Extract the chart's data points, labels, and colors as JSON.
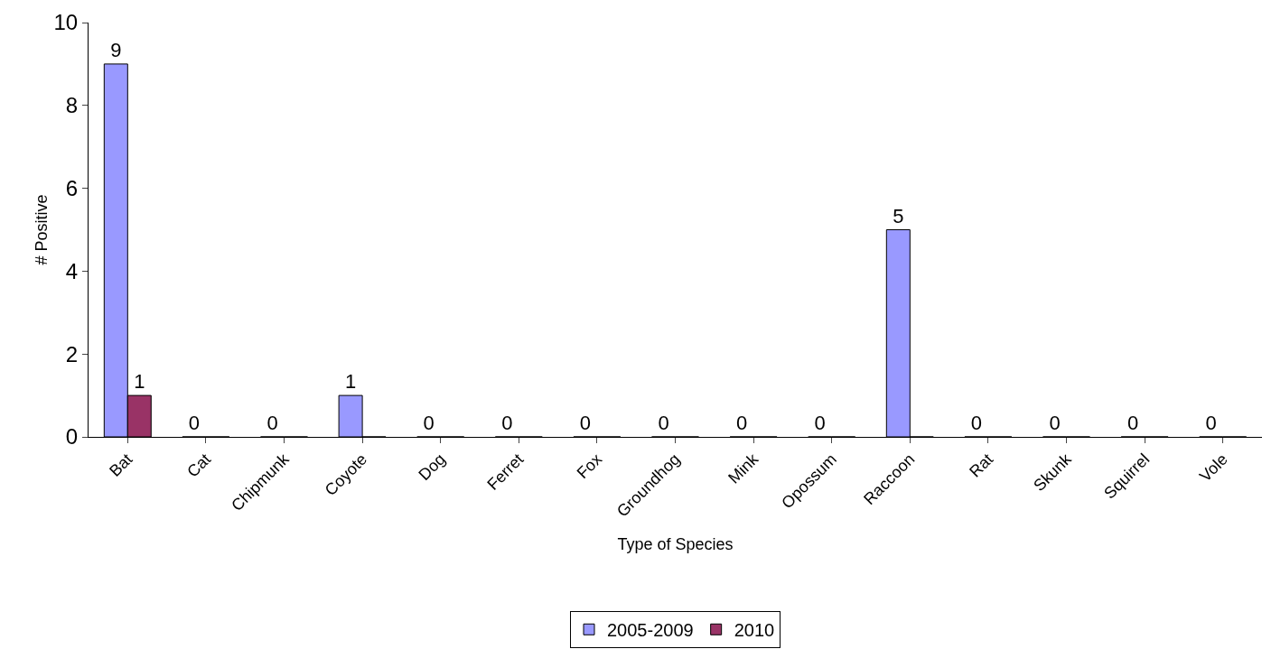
{
  "chart_data": {
    "type": "bar",
    "xlabel": "Type of Species",
    "ylabel": "# Positive",
    "categories": [
      "Bat",
      "Cat",
      "Chipmunk",
      "Coyote",
      "Dog",
      "Ferret",
      "Fox",
      "Groundhog",
      "Mink",
      "Opossum",
      "Raccoon",
      "Rat",
      "Skunk",
      "Squirrel",
      "Vole"
    ],
    "series": [
      {
        "name": "2005-2009",
        "color": "#9999ff",
        "values": [
          9,
          0,
          0,
          1,
          0,
          0,
          0,
          0,
          0,
          0,
          5,
          0,
          0,
          0,
          0
        ],
        "value_labels": [
          "9",
          "0",
          "0",
          "1",
          "0",
          "0",
          "0",
          "0",
          "0",
          "0",
          "5",
          "0",
          "0",
          "0",
          "0"
        ]
      },
      {
        "name": "2010",
        "color": "#993366",
        "values": [
          1,
          0,
          0,
          0,
          0,
          0,
          0,
          0,
          0,
          0,
          0,
          0,
          0,
          0,
          0
        ],
        "value_labels": [
          "1",
          null,
          null,
          null,
          null,
          null,
          null,
          null,
          null,
          null,
          null,
          null,
          null,
          null,
          null
        ]
      }
    ],
    "ylim": [
      0,
      10
    ],
    "yticks": [
      0,
      2,
      4,
      6,
      8,
      10
    ],
    "grid": false,
    "legend": "bottom"
  }
}
